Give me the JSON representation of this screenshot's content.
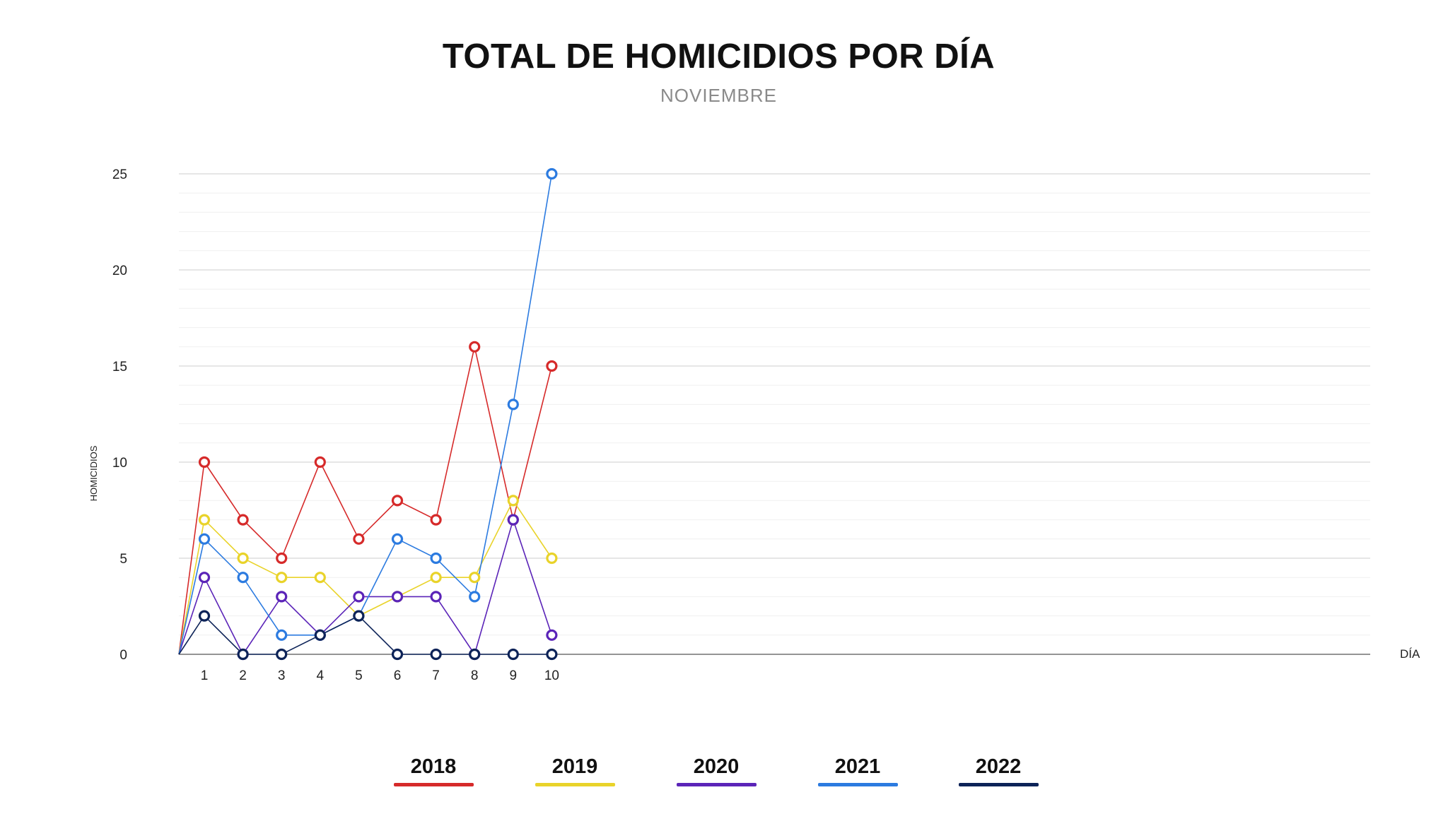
{
  "title": "TOTAL DE HOMICIDIOS POR DÍA",
  "subtitle": "NOVIEMBRE",
  "chart_data": {
    "type": "line",
    "title": "TOTAL DE HOMICIDIOS POR DÍA",
    "subtitle": "NOVIEMBRE",
    "xlabel": "DÍA",
    "ylabel": "HOMICIDIOS",
    "ylim": [
      0,
      25
    ],
    "yticks": [
      0,
      5,
      10,
      15,
      20,
      25
    ],
    "x": [
      1,
      2,
      3,
      4,
      5,
      6,
      7,
      8,
      9,
      10
    ],
    "grid": true,
    "legend_position": "bottom",
    "series": [
      {
        "name": "2018",
        "color": "#d62a2a",
        "values": [
          10,
          7,
          5,
          10,
          6,
          8,
          7,
          16,
          7,
          15
        ]
      },
      {
        "name": "2019",
        "color": "#e9d32a",
        "values": [
          7,
          5,
          4,
          4,
          2,
          3,
          4,
          4,
          8,
          5
        ]
      },
      {
        "name": "2020",
        "color": "#5b24b8",
        "values": [
          4,
          0,
          3,
          1,
          3,
          3,
          3,
          0,
          7,
          1
        ]
      },
      {
        "name": "2021",
        "color": "#2c7be0",
        "values": [
          6,
          4,
          1,
          1,
          2,
          6,
          5,
          3,
          13,
          25
        ]
      },
      {
        "name": "2022",
        "color": "#0d2358",
        "values": [
          2,
          0,
          0,
          1,
          2,
          0,
          0,
          0,
          0,
          0
        ]
      }
    ]
  }
}
